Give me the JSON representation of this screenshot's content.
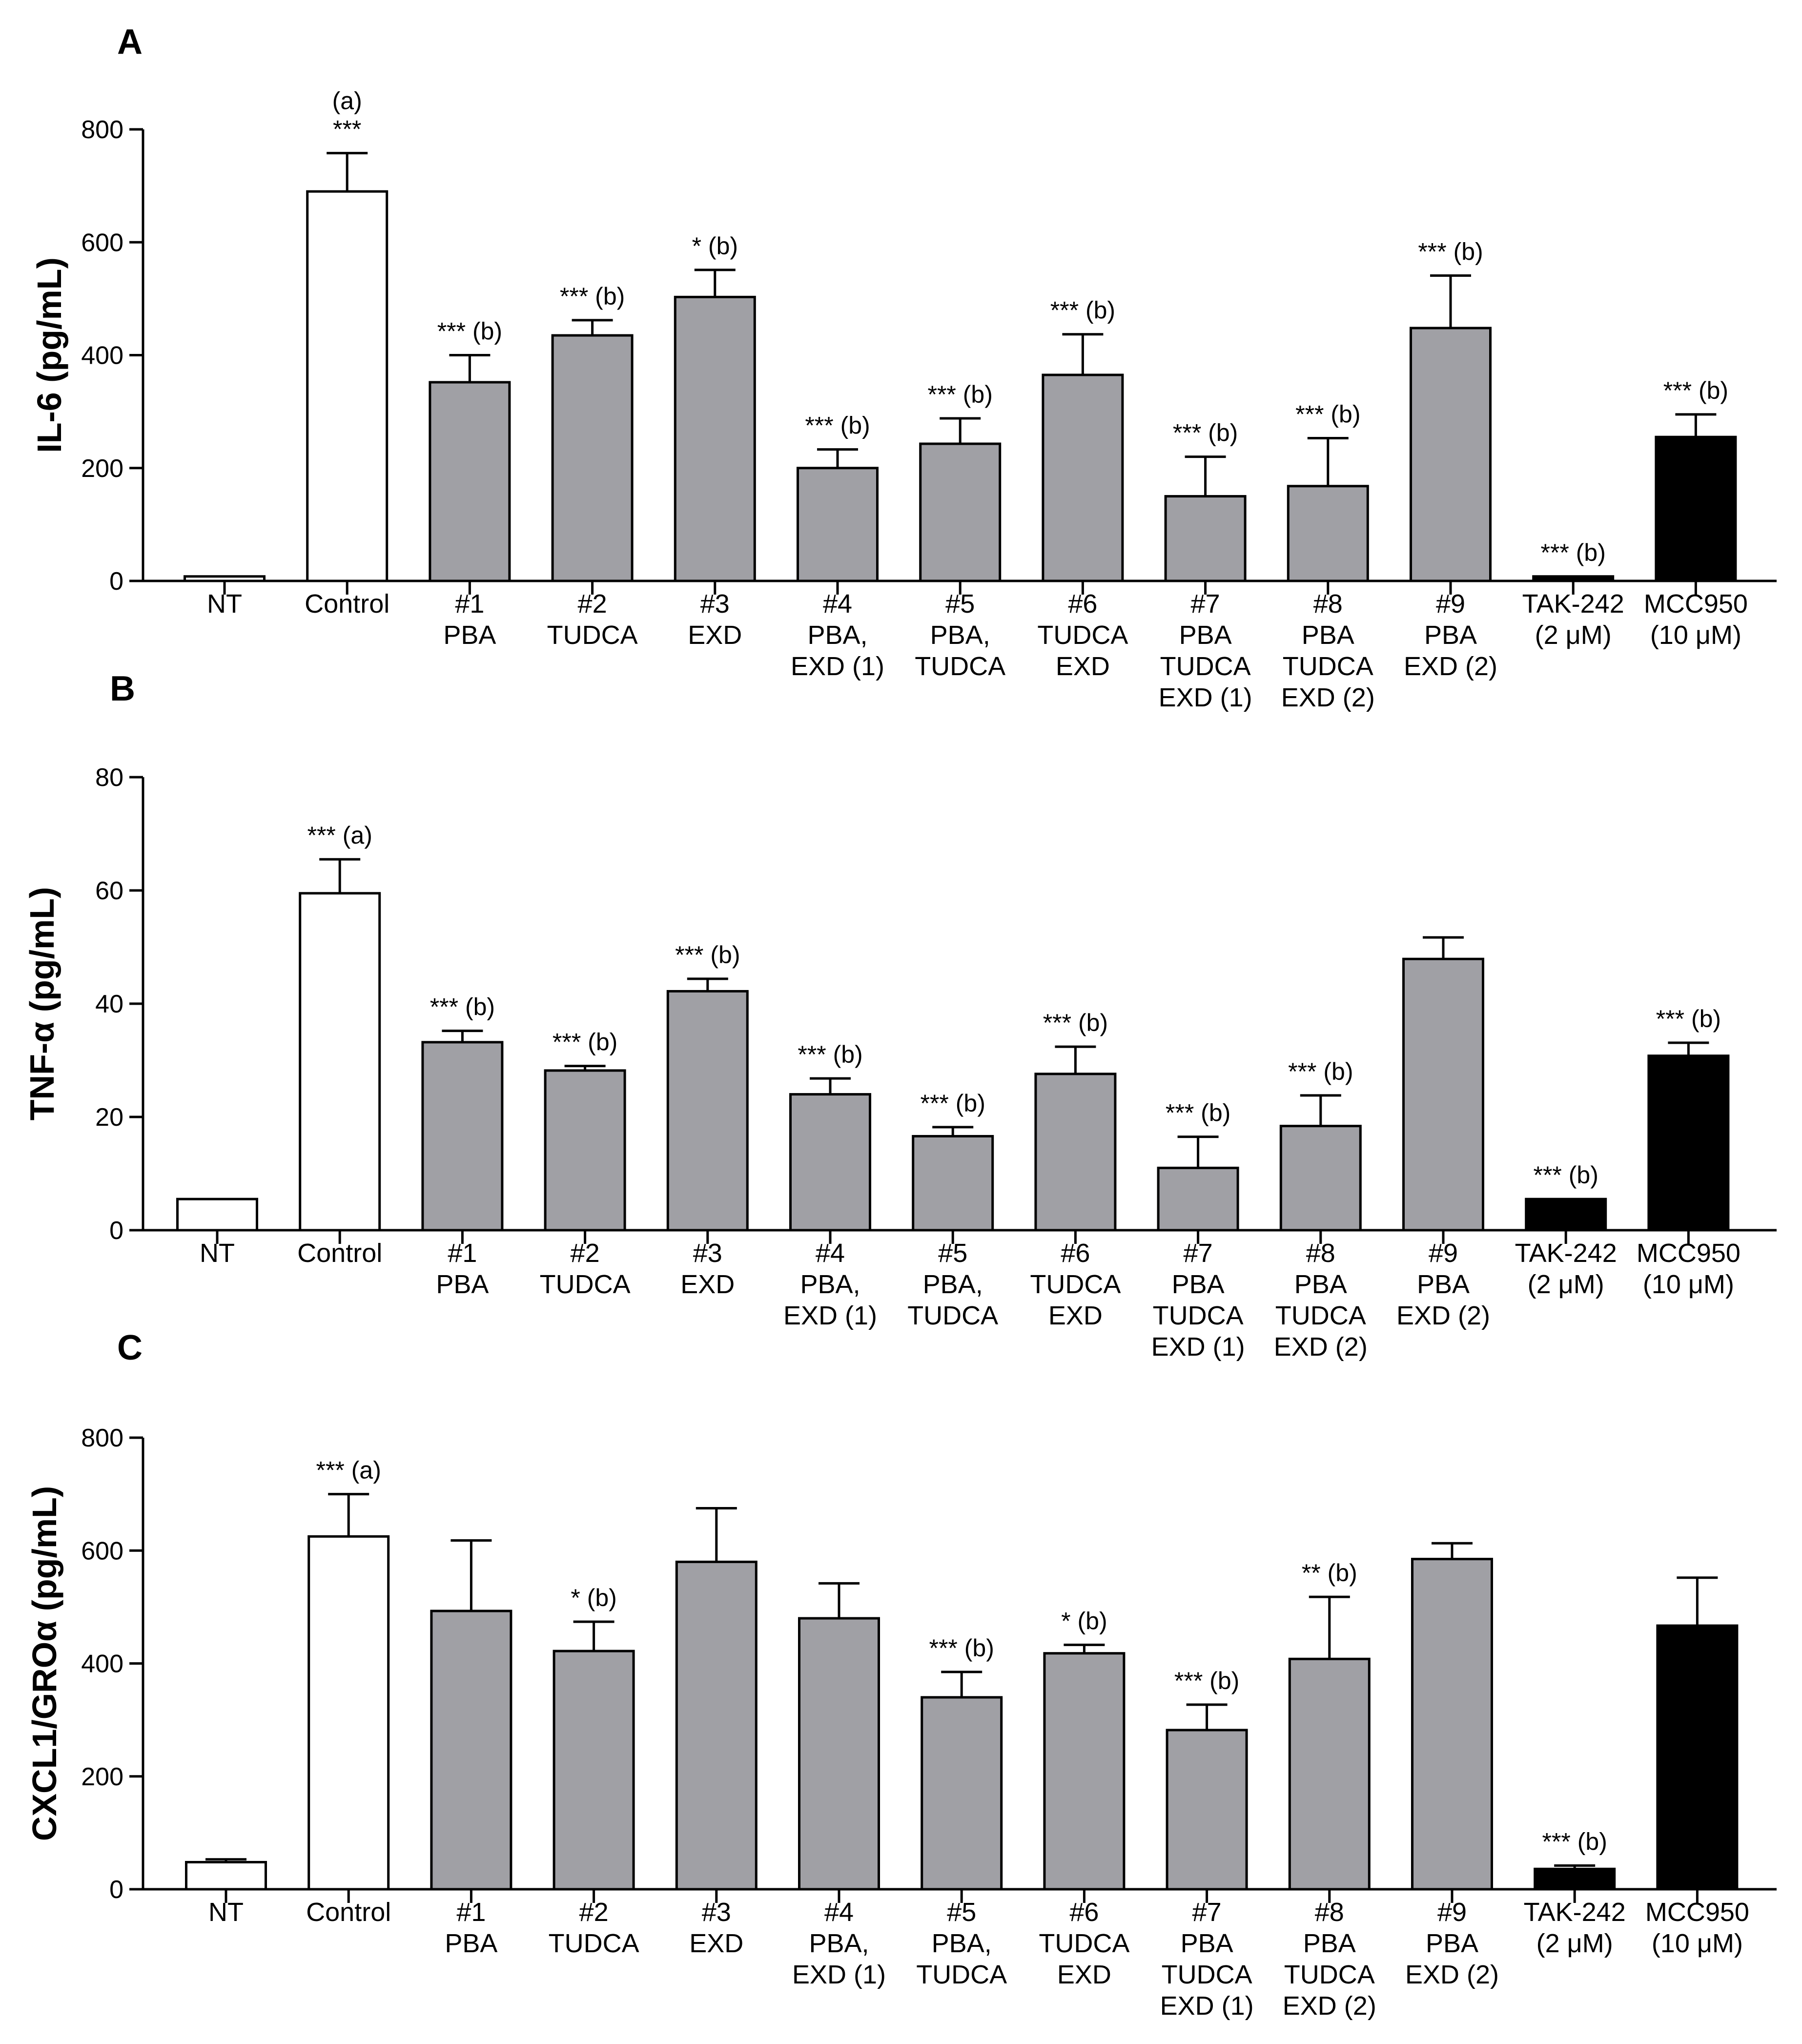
{
  "figure": {
    "colors": {
      "nt": "#ffffff",
      "control": "#ffffff",
      "treatment": "#a0a0a5",
      "reference": "#000000",
      "edge": "#000000"
    },
    "bar_color_index": [
      "nt",
      "control",
      "treatment",
      "treatment",
      "treatment",
      "treatment",
      "treatment",
      "treatment",
      "treatment",
      "treatment",
      "treatment",
      "reference",
      "reference"
    ]
  },
  "chart_data": [
    {
      "type": "bar",
      "panel": "A",
      "ylabel": "IL-6 (pg/mL)",
      "ylim": [
        0,
        800
      ],
      "yticks": [
        0,
        200,
        400,
        600,
        800
      ],
      "categories": [
        [
          "NT"
        ],
        [
          "Control"
        ],
        [
          "#1",
          "PBA"
        ],
        [
          "#2",
          "TUDCA"
        ],
        [
          "#3",
          "EXD"
        ],
        [
          "#4",
          "PBA,",
          "EXD (1)"
        ],
        [
          "#5",
          "PBA,",
          "TUDCA"
        ],
        [
          "#6",
          "TUDCA",
          "EXD"
        ],
        [
          "#7",
          "PBA",
          "TUDCA",
          "EXD (1)"
        ],
        [
          "#8",
          "PBA",
          "TUDCA",
          "EXD (2)"
        ],
        [
          "#9",
          "PBA",
          "EXD (2)"
        ],
        [
          "TAK-242",
          "(2 μM)"
        ],
        [
          "MCC950",
          "(10 μM)"
        ]
      ],
      "values": [
        8,
        690,
        352,
        435,
        503,
        200,
        243,
        365,
        150,
        168,
        448,
        8,
        255
      ],
      "errors": [
        0,
        68,
        48,
        27,
        48,
        33,
        45,
        72,
        70,
        85,
        93,
        0,
        40
      ],
      "annotations": [
        [],
        [
          "(a)",
          "***"
        ],
        [
          "*** (b)"
        ],
        [
          "*** (b)"
        ],
        [
          "* (b)"
        ],
        [
          "*** (b)"
        ],
        [
          "*** (b)"
        ],
        [
          "*** (b)"
        ],
        [
          "*** (b)"
        ],
        [
          "*** (b)"
        ],
        [
          "*** (b)"
        ],
        [
          "*** (b)"
        ],
        [
          "*** (b)"
        ]
      ]
    },
    {
      "type": "bar",
      "panel": "B",
      "ylabel": "TNF-α (pg/mL)",
      "ylim": [
        0,
        80
      ],
      "yticks": [
        0,
        20,
        40,
        60,
        80
      ],
      "categories": [
        [
          "NT"
        ],
        [
          "Control"
        ],
        [
          "#1",
          "PBA"
        ],
        [
          "#2",
          "TUDCA"
        ],
        [
          "#3",
          "EXD"
        ],
        [
          "#4",
          "PBA,",
          "EXD (1)"
        ],
        [
          "#5",
          "PBA,",
          "TUDCA"
        ],
        [
          "#6",
          "TUDCA",
          "EXD"
        ],
        [
          "#7",
          "PBA",
          "TUDCA",
          "EXD (1)"
        ],
        [
          "#8",
          "PBA",
          "TUDCA",
          "EXD (2)"
        ],
        [
          "#9",
          "PBA",
          "EXD (2)"
        ],
        [
          "TAK-242",
          "(2 μM)"
        ],
        [
          "MCC950",
          "(10 μM)"
        ]
      ],
      "values": [
        5.5,
        59.5,
        33.2,
        28.2,
        42.2,
        24.0,
        16.6,
        27.6,
        11.0,
        18.4,
        47.9,
        5.5,
        30.8
      ],
      "errors": [
        0,
        6.0,
        2.0,
        0.8,
        2.2,
        2.8,
        1.6,
        4.8,
        5.5,
        5.4,
        3.8,
        0,
        2.3
      ],
      "annotations": [
        [],
        [
          "*** (a)"
        ],
        [
          "*** (b)"
        ],
        [
          "*** (b)"
        ],
        [
          "*** (b)"
        ],
        [
          "*** (b)"
        ],
        [
          "*** (b)"
        ],
        [
          "*** (b)"
        ],
        [
          "*** (b)"
        ],
        [
          "*** (b)"
        ],
        [],
        [
          "*** (b)"
        ],
        [
          "*** (b)"
        ]
      ]
    },
    {
      "type": "bar",
      "panel": "C",
      "ylabel": "CXCL1/GROα (pg/mL)",
      "ylim": [
        0,
        800
      ],
      "yticks": [
        0,
        200,
        400,
        600,
        800
      ],
      "categories": [
        [
          "NT"
        ],
        [
          "Control"
        ],
        [
          "#1",
          "PBA"
        ],
        [
          "#2",
          "TUDCA"
        ],
        [
          "#3",
          "EXD"
        ],
        [
          "#4",
          "PBA,",
          "EXD (1)"
        ],
        [
          "#5",
          "PBA,",
          "TUDCA"
        ],
        [
          "#6",
          "TUDCA",
          "EXD"
        ],
        [
          "#7",
          "PBA",
          "TUDCA",
          "EXD (1)"
        ],
        [
          "#8",
          "PBA",
          "TUDCA",
          "EXD (2)"
        ],
        [
          "#9",
          "PBA",
          "EXD (2)"
        ],
        [
          "TAK-242",
          "(2 μM)"
        ],
        [
          "MCC950",
          "(10 μM)"
        ]
      ],
      "values": [
        48,
        625,
        493,
        422,
        580,
        480,
        340,
        418,
        282,
        408,
        585,
        36,
        467
      ],
      "errors": [
        5,
        75,
        125,
        52,
        95,
        62,
        45,
        15,
        45,
        110,
        28,
        6,
        85
      ],
      "annotations": [
        [],
        [
          "*** (a)"
        ],
        [],
        [
          "* (b)"
        ],
        [],
        [],
        [
          "*** (b)"
        ],
        [
          "* (b)"
        ],
        [
          "*** (b)"
        ],
        [
          "** (b)"
        ],
        [],
        [
          "*** (b)"
        ],
        []
      ]
    }
  ]
}
